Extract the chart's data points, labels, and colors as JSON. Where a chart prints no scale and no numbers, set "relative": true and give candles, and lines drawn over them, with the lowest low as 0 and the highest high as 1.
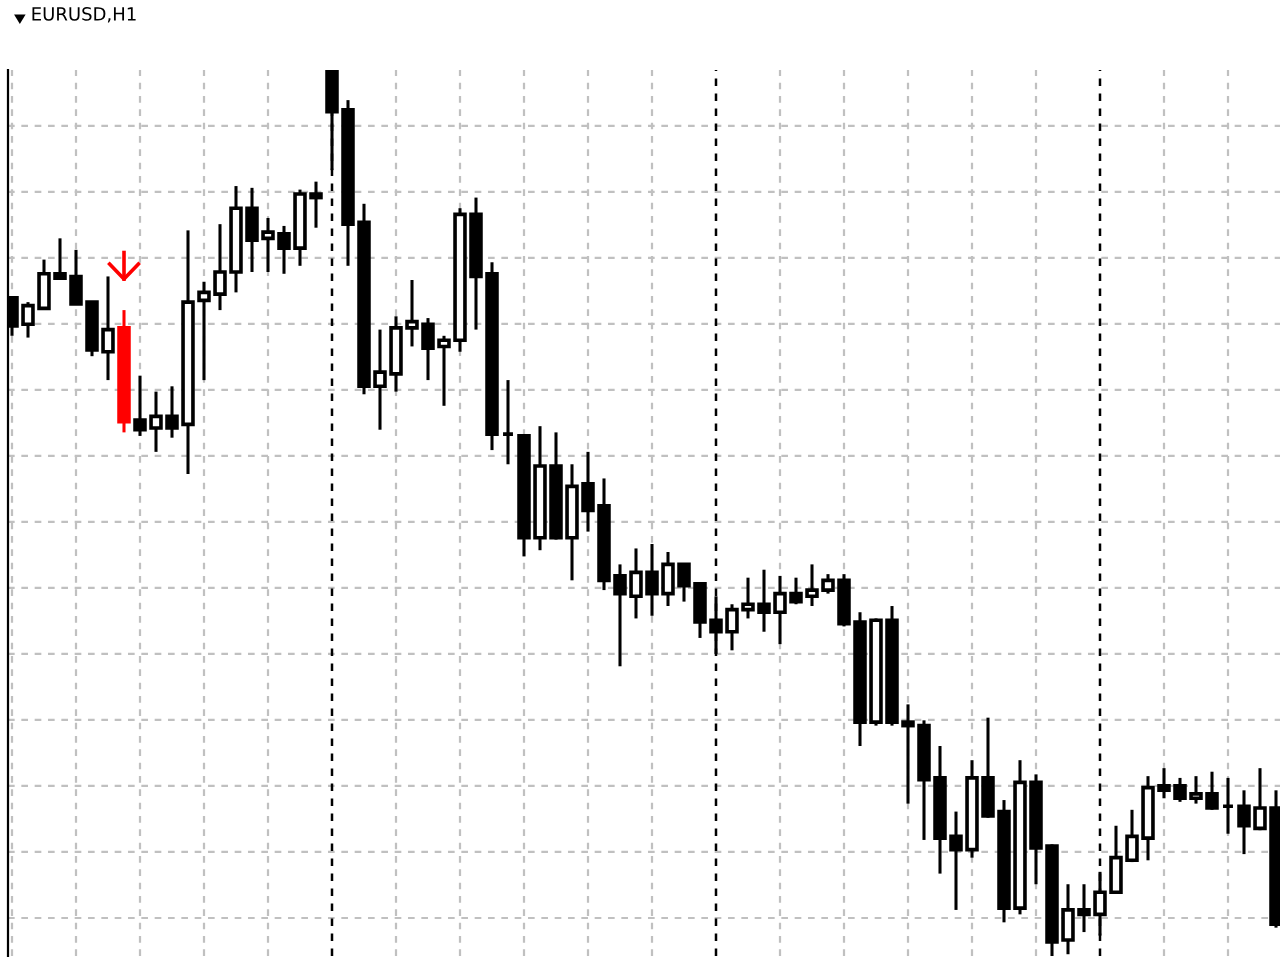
{
  "chart_data": {
    "type": "candlestick",
    "title": "EURUSD,H1",
    "relative": true,
    "grid": true,
    "categories": [
      null,
      null,
      null,
      null,
      null,
      null,
      null,
      null,
      null,
      null,
      null,
      null,
      null,
      null,
      null,
      null,
      null,
      null,
      null,
      null,
      null,
      null,
      null,
      null,
      null,
      null,
      null,
      null,
      null,
      null,
      null,
      null,
      null,
      null,
      null,
      null,
      null,
      null,
      null,
      null,
      null,
      null,
      null,
      null,
      null,
      null,
      null,
      null,
      null,
      null,
      null,
      null,
      null,
      null,
      null,
      null,
      null,
      null,
      null,
      null,
      null,
      null,
      null,
      null,
      null,
      null,
      null,
      null,
      null,
      null,
      null,
      null,
      null,
      null,
      null,
      null,
      null,
      null,
      null,
      null
    ],
    "ohlc": [
      [
        0.743,
        0.743,
        0.7,
        0.711
      ],
      [
        0.713,
        0.738,
        0.698,
        0.734
      ],
      [
        0.731,
        0.786,
        0.731,
        0.77
      ],
      [
        0.77,
        0.81,
        0.763,
        0.765
      ],
      [
        0.767,
        0.797,
        0.736,
        0.736
      ],
      [
        0.738,
        0.738,
        0.677,
        0.684
      ],
      [
        0.682,
        0.767,
        0.65,
        0.707
      ],
      [
        0.709,
        0.729,
        0.591,
        0.603
      ],
      [
        0.605,
        0.655,
        0.587,
        0.594
      ],
      [
        0.596,
        0.637,
        0.569,
        0.609
      ],
      [
        0.609,
        0.643,
        0.585,
        0.596
      ],
      [
        0.6,
        0.819,
        0.544,
        0.738
      ],
      [
        0.74,
        0.761,
        0.65,
        0.749
      ],
      [
        0.747,
        0.826,
        0.729,
        0.772
      ],
      [
        0.772,
        0.869,
        0.749,
        0.844
      ],
      [
        0.844,
        0.867,
        0.772,
        0.808
      ],
      [
        0.81,
        0.833,
        0.772,
        0.817
      ],
      [
        0.815,
        0.824,
        0.77,
        0.799
      ],
      [
        0.799,
        0.865,
        0.779,
        0.86
      ],
      [
        0.86,
        0.874,
        0.822,
        0.856
      ],
      [
        0.998,
        1.0,
        0.887,
        0.953
      ],
      [
        0.955,
        0.966,
        0.779,
        0.826
      ],
      [
        0.828,
        0.849,
        0.634,
        0.643
      ],
      [
        0.643,
        0.707,
        0.594,
        0.659
      ],
      [
        0.657,
        0.722,
        0.637,
        0.709
      ],
      [
        0.709,
        0.763,
        0.688,
        0.716
      ],
      [
        0.713,
        0.72,
        0.65,
        0.686
      ],
      [
        0.688,
        0.7,
        0.621,
        0.695
      ],
      [
        0.695,
        0.844,
        0.682,
        0.837
      ],
      [
        0.837,
        0.856,
        0.707,
        0.767
      ],
      [
        0.77,
        0.783,
        0.571,
        0.589
      ],
      [
        0.589,
        0.65,
        0.555,
        0.589
      ],
      [
        0.587,
        0.587,
        0.451,
        0.472
      ],
      [
        0.472,
        0.598,
        0.458,
        0.553
      ],
      [
        0.553,
        0.591,
        0.47,
        0.472
      ],
      [
        0.472,
        0.555,
        0.424,
        0.53
      ],
      [
        0.533,
        0.569,
        0.479,
        0.503
      ],
      [
        0.508,
        0.539,
        0.413,
        0.424
      ],
      [
        0.429,
        0.442,
        0.327,
        0.409
      ],
      [
        0.406,
        0.46,
        0.381,
        0.433
      ],
      [
        0.433,
        0.465,
        0.384,
        0.409
      ],
      [
        0.409,
        0.456,
        0.395,
        0.442
      ],
      [
        0.442,
        0.442,
        0.4,
        0.418
      ],
      [
        0.42,
        0.422,
        0.359,
        0.377
      ],
      [
        0.379,
        0.406,
        0.341,
        0.366
      ],
      [
        0.366,
        0.397,
        0.345,
        0.391
      ],
      [
        0.391,
        0.427,
        0.381,
        0.397
      ],
      [
        0.397,
        0.436,
        0.366,
        0.388
      ],
      [
        0.388,
        0.429,
        0.352,
        0.409
      ],
      [
        0.409,
        0.427,
        0.397,
        0.4
      ],
      [
        0.406,
        0.442,
        0.395,
        0.413
      ],
      [
        0.413,
        0.431,
        0.409,
        0.424
      ],
      [
        0.424,
        0.431,
        0.372,
        0.375
      ],
      [
        0.377,
        0.388,
        0.237,
        0.264
      ],
      [
        0.264,
        0.381,
        0.26,
        0.379
      ],
      [
        0.379,
        0.395,
        0.26,
        0.264
      ],
      [
        0.264,
        0.284,
        0.172,
        0.26
      ],
      [
        0.26,
        0.266,
        0.131,
        0.199
      ],
      [
        0.201,
        0.237,
        0.093,
        0.133
      ],
      [
        0.135,
        0.163,
        0.052,
        0.12
      ],
      [
        0.12,
        0.221,
        0.111,
        0.201
      ],
      [
        0.201,
        0.269,
        0.156,
        0.158
      ],
      [
        0.163,
        0.176,
        0.038,
        0.054
      ],
      [
        0.054,
        0.221,
        0.047,
        0.196
      ],
      [
        0.196,
        0.205,
        0.081,
        0.122
      ],
      [
        0.124,
        0.126,
        0.0,
        0.016
      ],
      [
        0.018,
        0.081,
        0.002,
        0.052
      ],
      [
        0.052,
        0.081,
        0.027,
        0.047
      ],
      [
        0.047,
        0.095,
        0.023,
        0.072
      ],
      [
        0.072,
        0.147,
        0.07,
        0.111
      ],
      [
        0.108,
        0.165,
        0.106,
        0.135
      ],
      [
        0.133,
        0.203,
        0.108,
        0.19
      ],
      [
        0.192,
        0.212,
        0.178,
        0.187
      ],
      [
        0.192,
        0.201,
        0.174,
        0.178
      ],
      [
        0.178,
        0.203,
        0.172,
        0.183
      ],
      [
        0.183,
        0.208,
        0.165,
        0.167
      ],
      [
        0.169,
        0.201,
        0.138,
        0.169
      ],
      [
        0.169,
        0.187,
        0.115,
        0.147
      ],
      [
        0.144,
        0.212,
        0.142,
        0.167
      ],
      [
        0.167,
        0.187,
        0.032,
        0.036
      ]
    ],
    "colors": [
      "#000000",
      "#ffffff",
      "#ffffff",
      "#000000",
      "#000000",
      "#000000",
      "#ffffff",
      "#ff0000",
      "#000000",
      "#ffffff",
      "#000000",
      "#ffffff",
      "#ffffff",
      "#ffffff",
      "#ffffff",
      "#000000",
      "#ffffff",
      "#000000",
      "#ffffff",
      "#000000",
      "#000000",
      "#000000",
      "#000000",
      "#ffffff",
      "#ffffff",
      "#ffffff",
      "#000000",
      "#ffffff",
      "#ffffff",
      "#000000",
      "#000000",
      "#000000",
      "#000000",
      "#ffffff",
      "#000000",
      "#ffffff",
      "#000000",
      "#000000",
      "#000000",
      "#ffffff",
      "#000000",
      "#ffffff",
      "#000000",
      "#000000",
      "#000000",
      "#ffffff",
      "#ffffff",
      "#000000",
      "#ffffff",
      "#000000",
      "#ffffff",
      "#ffffff",
      "#000000",
      "#000000",
      "#ffffff",
      "#000000",
      "#000000",
      "#000000",
      "#000000",
      "#000000",
      "#ffffff",
      "#000000",
      "#000000",
      "#ffffff",
      "#000000",
      "#000000",
      "#ffffff",
      "#000000",
      "#ffffff",
      "#ffffff",
      "#ffffff",
      "#ffffff",
      "#000000",
      "#000000",
      "#ffffff",
      "#000000",
      "#000000",
      "#000000",
      "#ffffff",
      "#000000"
    ]
  }
}
